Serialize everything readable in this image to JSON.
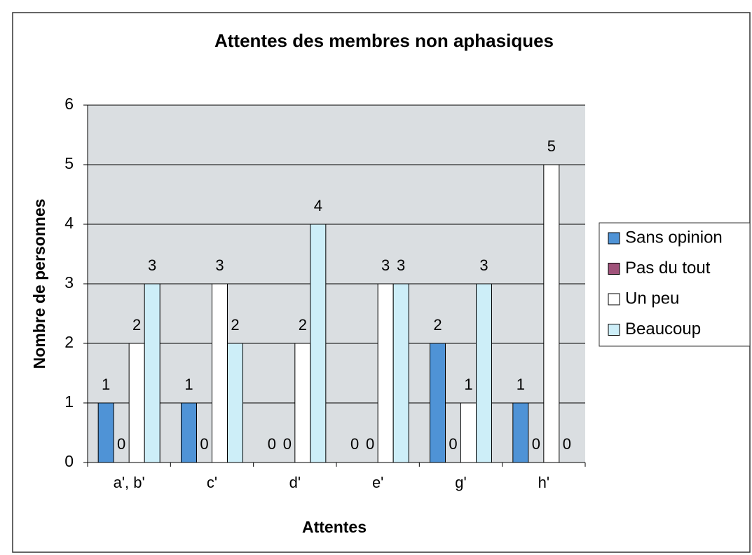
{
  "chart_data": {
    "type": "bar",
    "title": "Attentes des membres non aphasiques",
    "x_label": "Attentes",
    "y_label": "Nombre de personnes",
    "categories": [
      "a', b'",
      "c'",
      "d'",
      "e'",
      "g'",
      "h'"
    ],
    "series": [
      {
        "name": "Sans opinion",
        "color": "#4f93d6",
        "values": [
          1,
          1,
          0,
          0,
          2,
          1
        ]
      },
      {
        "name": "Pas du tout",
        "color": "#a0527a",
        "values": [
          0,
          0,
          0,
          0,
          0,
          0
        ]
      },
      {
        "name": "Un peu",
        "color": "#ffffff",
        "values": [
          2,
          3,
          2,
          3,
          1,
          5
        ]
      },
      {
        "name": "Beaucoup",
        "color": "#cdeef8",
        "values": [
          3,
          2,
          4,
          3,
          3,
          0
        ]
      }
    ],
    "ylim": [
      0,
      6
    ],
    "yticks": [
      0,
      1,
      2,
      3,
      4,
      5,
      6
    ],
    "grid": true,
    "legend": "right"
  }
}
